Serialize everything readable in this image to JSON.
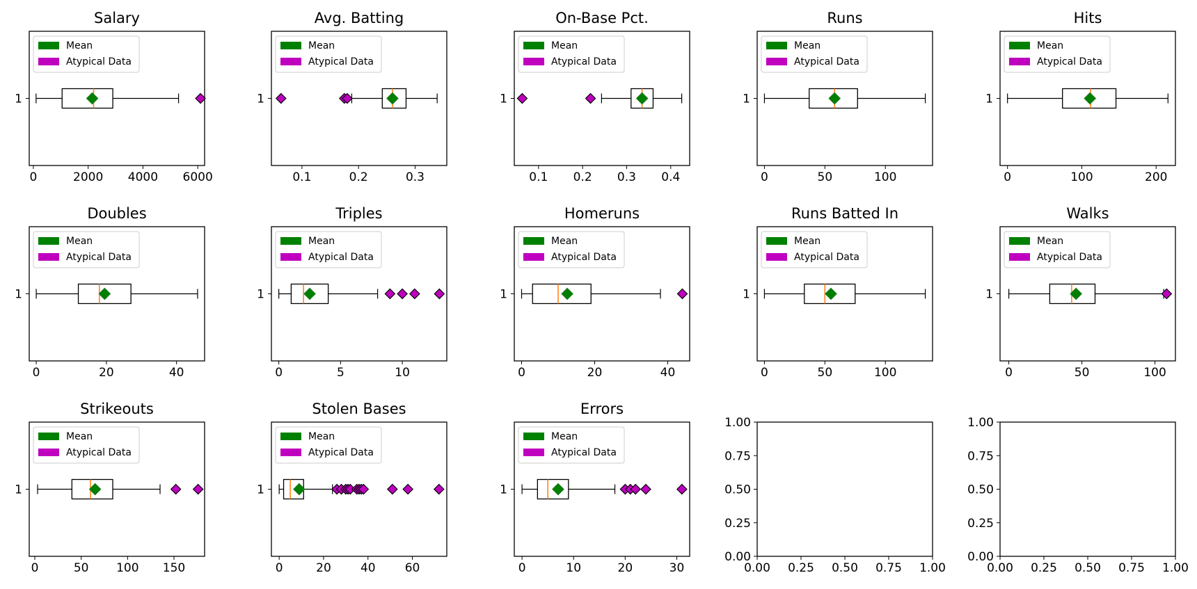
{
  "legend": {
    "mean_label": "Mean",
    "outlier_label": "Atypical Data",
    "mean_color": "#008000",
    "outlier_color": "#bf00bf"
  },
  "colors": {
    "median": "#ff7f0e",
    "box": "#000000"
  },
  "chart_data": [
    {
      "type": "boxplot",
      "title": "Salary",
      "category": "1",
      "whisker_low": 100,
      "q1": 1050,
      "median": 2200,
      "q3": 2900,
      "whisker_high": 5300,
      "mean": 2150,
      "outliers": [
        6100
      ],
      "xlim": [
        -150,
        6250
      ],
      "ticks": [
        0,
        2000,
        4000,
        6000
      ],
      "tick_labels": [
        "0",
        "2000",
        "4000",
        "6000"
      ]
    },
    {
      "type": "boxplot",
      "title": "Avg. Batting",
      "category": "1",
      "whisker_low": 0.188,
      "q1": 0.242,
      "median": 0.26,
      "q3": 0.284,
      "whisker_high": 0.339,
      "mean": 0.26,
      "outliers": [
        0.063,
        0.175,
        0.18
      ],
      "xlim": [
        0.046,
        0.356
      ],
      "ticks": [
        0.1,
        0.2,
        0.3
      ],
      "tick_labels": [
        "0.1",
        "0.2",
        "0.3"
      ]
    },
    {
      "type": "boxplot",
      "title": "On-Base Pct.",
      "category": "1",
      "whisker_low": 0.243,
      "q1": 0.31,
      "median": 0.335,
      "q3": 0.36,
      "whisker_high": 0.425,
      "mean": 0.335,
      "outliers": [
        0.063,
        0.218
      ],
      "xlim": [
        0.045,
        0.443
      ],
      "ticks": [
        0.1,
        0.2,
        0.3,
        0.4
      ],
      "tick_labels": [
        "0.1",
        "0.2",
        "0.3",
        "0.4"
      ]
    },
    {
      "type": "boxplot",
      "title": "Runs",
      "category": "1",
      "whisker_low": 0,
      "q1": 37,
      "median": 58,
      "q3": 77,
      "whisker_high": 133,
      "mean": 58,
      "outliers": [],
      "xlim": [
        -6,
        139
      ],
      "ticks": [
        0,
        50,
        100
      ],
      "tick_labels": [
        "0",
        "50",
        "100"
      ]
    },
    {
      "type": "boxplot",
      "title": "Hits",
      "category": "1",
      "whisker_low": 0,
      "q1": 74,
      "median": 112,
      "q3": 146,
      "whisker_high": 216,
      "mean": 111,
      "outliers": [],
      "xlim": [
        -10,
        226
      ],
      "ticks": [
        0,
        100,
        200
      ],
      "tick_labels": [
        "0",
        "100",
        "200"
      ]
    },
    {
      "type": "boxplot",
      "title": "Doubles",
      "category": "1",
      "whisker_low": 0,
      "q1": 12,
      "median": 18,
      "q3": 27,
      "whisker_high": 46,
      "mean": 19.5,
      "outliers": [],
      "xlim": [
        -2,
        48
      ],
      "ticks": [
        0,
        20,
        40
      ],
      "tick_labels": [
        "0",
        "20",
        "40"
      ]
    },
    {
      "type": "boxplot",
      "title": "Triples",
      "category": "1",
      "whisker_low": 0,
      "q1": 1,
      "median": 2,
      "q3": 4,
      "whisker_high": 8,
      "mean": 2.5,
      "outliers": [
        9,
        10,
        11,
        13
      ],
      "xlim": [
        -0.6,
        13.6
      ],
      "ticks": [
        0,
        5,
        10
      ],
      "tick_labels": [
        "0",
        "5",
        "10"
      ]
    },
    {
      "type": "boxplot",
      "title": "Homeruns",
      "category": "1",
      "whisker_low": 0,
      "q1": 3,
      "median": 10,
      "q3": 19,
      "whisker_high": 38,
      "mean": 12.5,
      "outliers": [
        44
      ],
      "xlim": [
        -2,
        46
      ],
      "ticks": [
        0,
        20,
        40
      ],
      "tick_labels": [
        "0",
        "20",
        "40"
      ]
    },
    {
      "type": "boxplot",
      "title": "Runs Batted In",
      "category": "1",
      "whisker_low": 0,
      "q1": 33,
      "median": 50,
      "q3": 75,
      "whisker_high": 133,
      "mean": 55,
      "outliers": [],
      "xlim": [
        -6,
        139
      ],
      "ticks": [
        0,
        50,
        100
      ],
      "tick_labels": [
        "0",
        "50",
        "100"
      ]
    },
    {
      "type": "boxplot",
      "title": "Walks",
      "category": "1",
      "whisker_low": 0,
      "q1": 28,
      "median": 43,
      "q3": 59,
      "whisker_high": 106,
      "mean": 46,
      "outliers": [
        108
      ],
      "xlim": [
        -6,
        114
      ],
      "ticks": [
        0,
        50,
        100
      ],
      "tick_labels": [
        "0",
        "50",
        "100"
      ]
    },
    {
      "type": "boxplot",
      "title": "Strikeouts",
      "category": "1",
      "whisker_low": 3,
      "q1": 40,
      "median": 60,
      "q3": 84,
      "whisker_high": 135,
      "mean": 65,
      "outliers": [
        152,
        176
      ],
      "xlim": [
        -6,
        183
      ],
      "ticks": [
        0,
        50,
        100,
        150
      ],
      "tick_labels": [
        "0",
        "50",
        "100",
        "150"
      ]
    },
    {
      "type": "boxplot",
      "title": "Stolen Bases",
      "category": "1",
      "whisker_low": 0,
      "q1": 2,
      "median": 5,
      "q3": 11,
      "whisker_high": 24,
      "mean": 9,
      "outliers": [
        26,
        28,
        30,
        31,
        32,
        35,
        36,
        37,
        38,
        51,
        58,
        72
      ],
      "xlim": [
        -3.5,
        75.5
      ],
      "ticks": [
        0,
        20,
        40,
        60
      ],
      "tick_labels": [
        "0",
        "20",
        "40",
        "60"
      ]
    },
    {
      "type": "boxplot",
      "title": "Errors",
      "category": "1",
      "whisker_low": 0,
      "q1": 3,
      "median": 5,
      "q3": 9,
      "whisker_high": 18,
      "mean": 7,
      "outliers": [
        20,
        21,
        22,
        24,
        31
      ],
      "xlim": [
        -1.5,
        32.5
      ],
      "ticks": [
        0,
        10,
        20,
        30
      ],
      "tick_labels": [
        "0",
        "10",
        "20",
        "30"
      ]
    },
    {
      "type": "empty",
      "xlim": [
        0,
        1
      ],
      "ylim": [
        0,
        1
      ],
      "x_tick_labels": [
        "0.00",
        "0.25",
        "0.50",
        "0.75",
        "1.00"
      ],
      "y_tick_labels": [
        "0.00",
        "0.25",
        "0.50",
        "0.75",
        "1.00"
      ]
    },
    {
      "type": "empty",
      "xlim": [
        0,
        1
      ],
      "ylim": [
        0,
        1
      ],
      "x_tick_labels": [
        "0.00",
        "0.25",
        "0.50",
        "0.75",
        "1.00"
      ],
      "y_tick_labels": [
        "0.00",
        "0.25",
        "0.50",
        "0.75",
        "1.00"
      ]
    }
  ]
}
